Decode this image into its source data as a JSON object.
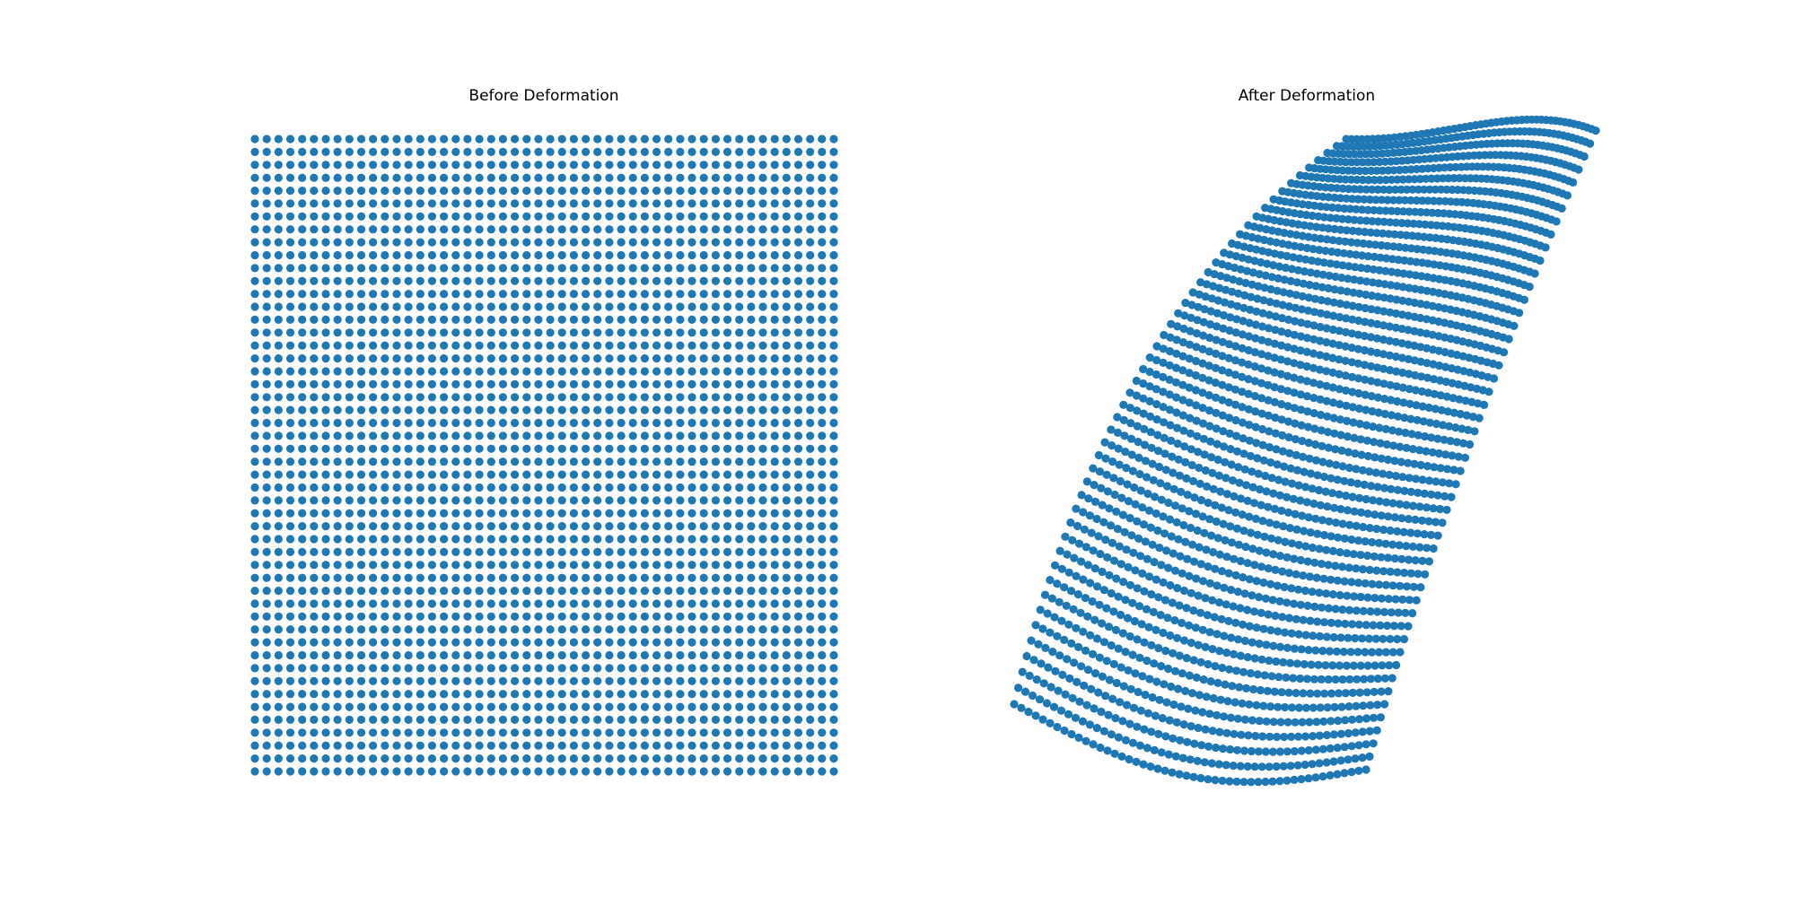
{
  "figure": {
    "left_title": "Before Deformation",
    "right_title": "After Deformation"
  },
  "colors": {
    "marker": "#1f77b4",
    "background": "#ffffff",
    "text": "#000000"
  },
  "chart_data": [
    {
      "type": "scatter",
      "title": "Before Deformation",
      "description_of_data": "uniform grid of points",
      "grid_points": {
        "columns": 50,
        "rows": 50
      },
      "xlim": [
        0,
        1
      ],
      "ylim": [
        0,
        1
      ],
      "axes_visible": false,
      "grid": false
    },
    {
      "type": "scatter",
      "title": "After Deformation",
      "grid_points": {
        "columns": 50,
        "rows": 50
      },
      "axes_visible": false,
      "grid": false
    }
  ]
}
